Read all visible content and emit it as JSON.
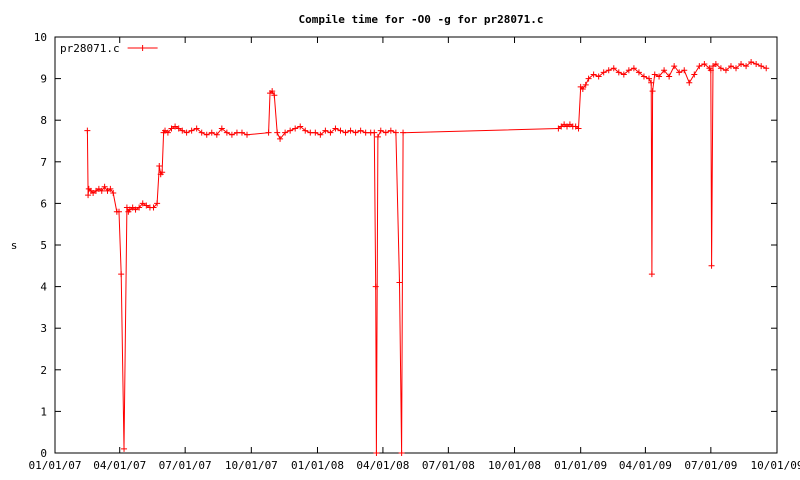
{
  "chart_data": {
    "type": "line",
    "title": "Compile time for -O0 -g for pr28071.c",
    "xlabel": "",
    "ylabel": "s",
    "ylim": [
      0,
      10
    ],
    "yticks": [
      "0",
      "1",
      "2",
      "3",
      "4",
      "5",
      "6",
      "7",
      "8",
      "9",
      "10"
    ],
    "xlim": [
      "2007-01-01",
      "2009-10-01"
    ],
    "xticks": [
      "01/01/07",
      "04/01/07",
      "07/01/07",
      "10/01/07",
      "01/01/08",
      "04/01/08",
      "07/01/08",
      "10/01/08",
      "01/01/09",
      "04/01/09",
      "07/01/09",
      "10/01/09"
    ],
    "grid": false,
    "legend_position": "top-left",
    "series": [
      {
        "name": "pr28071.c",
        "color": "#ff0000",
        "marker": "plus",
        "x": [
          "2007-02-15",
          "2007-02-16",
          "2007-02-17",
          "2007-02-20",
          "2007-02-23",
          "2007-02-27",
          "2007-03-03",
          "2007-03-07",
          "2007-03-11",
          "2007-03-15",
          "2007-03-19",
          "2007-03-23",
          "2007-03-28",
          "2007-03-31",
          "2007-04-03",
          "2007-04-07",
          "2007-04-11",
          "2007-04-13",
          "2007-04-15",
          "2007-04-19",
          "2007-04-23",
          "2007-04-28",
          "2007-05-03",
          "2007-05-08",
          "2007-05-13",
          "2007-05-18",
          "2007-05-23",
          "2007-05-26",
          "2007-05-28",
          "2007-05-30",
          "2007-06-01",
          "2007-06-03",
          "2007-06-07",
          "2007-06-12",
          "2007-06-17",
          "2007-06-22",
          "2007-06-27",
          "2007-07-03",
          "2007-07-10",
          "2007-07-17",
          "2007-07-24",
          "2007-07-31",
          "2007-08-07",
          "2007-08-14",
          "2007-08-21",
          "2007-08-28",
          "2007-09-04",
          "2007-09-11",
          "2007-09-18",
          "2007-09-25",
          "2007-10-25",
          "2007-10-27",
          "2007-10-30",
          "2007-11-02",
          "2007-11-06",
          "2007-11-10",
          "2007-11-17",
          "2007-11-24",
          "2007-12-01",
          "2007-12-08",
          "2007-12-15",
          "2007-12-22",
          "2007-12-29",
          "2008-01-05",
          "2008-01-12",
          "2008-01-19",
          "2008-01-26",
          "2008-02-02",
          "2008-02-09",
          "2008-02-16",
          "2008-02-23",
          "2008-03-01",
          "2008-03-08",
          "2008-03-15",
          "2008-03-20",
          "2008-03-22",
          "2008-03-23",
          "2008-03-25",
          "2008-03-29",
          "2008-04-05",
          "2008-04-12",
          "2008-04-19",
          "2008-04-24",
          "2008-04-27",
          "2008-04-29",
          "2008-12-01",
          "2008-12-05",
          "2008-12-09",
          "2008-12-13",
          "2008-12-17",
          "2008-12-21",
          "2008-12-25",
          "2008-12-29",
          "2009-01-01",
          "2009-01-04",
          "2009-01-08",
          "2009-01-12",
          "2009-01-19",
          "2009-01-26",
          "2009-02-02",
          "2009-02-09",
          "2009-02-16",
          "2009-02-23",
          "2009-03-02",
          "2009-03-09",
          "2009-03-16",
          "2009-03-23",
          "2009-03-30",
          "2009-04-06",
          "2009-04-09",
          "2009-04-10",
          "2009-04-11",
          "2009-04-14",
          "2009-04-20",
          "2009-04-27",
          "2009-05-04",
          "2009-05-11",
          "2009-05-18",
          "2009-05-25",
          "2009-06-01",
          "2009-06-08",
          "2009-06-15",
          "2009-06-22",
          "2009-06-29",
          "2009-07-01",
          "2009-07-02",
          "2009-07-04",
          "2009-07-08",
          "2009-07-15",
          "2009-07-22",
          "2009-07-29",
          "2009-08-05",
          "2009-08-12",
          "2009-08-19",
          "2009-08-26",
          "2009-09-02",
          "2009-09-09",
          "2009-09-16"
        ],
        "y": [
          7.75,
          6.2,
          6.35,
          6.3,
          6.25,
          6.3,
          6.35,
          6.3,
          6.4,
          6.3,
          6.35,
          6.25,
          5.8,
          5.8,
          4.3,
          0.1,
          5.9,
          5.8,
          5.85,
          5.9,
          5.85,
          5.9,
          6.0,
          5.95,
          5.9,
          5.9,
          6.0,
          6.9,
          6.7,
          6.75,
          7.7,
          7.75,
          7.7,
          7.8,
          7.85,
          7.8,
          7.75,
          7.7,
          7.75,
          7.8,
          7.7,
          7.65,
          7.7,
          7.65,
          7.8,
          7.7,
          7.65,
          7.7,
          7.7,
          7.65,
          7.7,
          8.65,
          8.7,
          8.6,
          7.7,
          7.55,
          7.7,
          7.75,
          7.8,
          7.85,
          7.75,
          7.7,
          7.7,
          7.65,
          7.75,
          7.7,
          7.8,
          7.75,
          7.7,
          7.75,
          7.7,
          7.75,
          7.7,
          7.7,
          7.7,
          4.0,
          0.0,
          7.6,
          7.75,
          7.7,
          7.75,
          7.7,
          4.1,
          0.0,
          7.7,
          7.8,
          7.85,
          7.9,
          7.85,
          7.9,
          7.85,
          7.85,
          7.8,
          8.8,
          8.75,
          8.85,
          9.0,
          9.1,
          9.05,
          9.15,
          9.2,
          9.25,
          9.15,
          9.1,
          9.2,
          9.25,
          9.15,
          9.05,
          9.0,
          8.9,
          4.3,
          8.7,
          9.1,
          9.05,
          9.2,
          9.05,
          9.3,
          9.15,
          9.2,
          8.9,
          9.1,
          9.3,
          9.35,
          9.25,
          9.2,
          4.5,
          9.3,
          9.35,
          9.25,
          9.2,
          9.3,
          9.25,
          9.35,
          9.3,
          9.4,
          9.35,
          9.3,
          9.25
        ]
      }
    ]
  }
}
